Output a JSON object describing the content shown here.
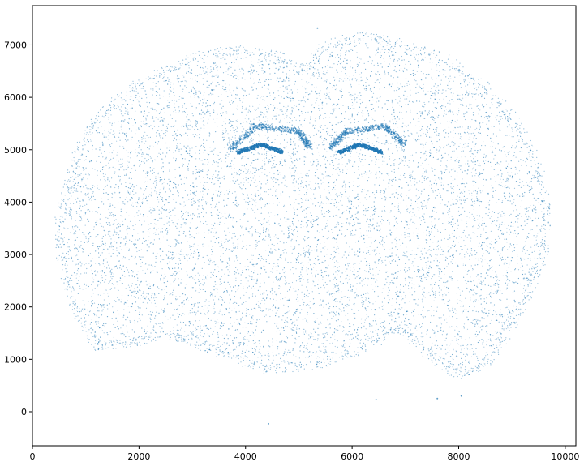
{
  "chart_data": {
    "type": "scatter",
    "title": "",
    "xlabel": "",
    "ylabel": "",
    "xlim": [
      0,
      10200
    ],
    "ylim": [
      -650,
      7750
    ],
    "x_ticks": [
      0,
      2000,
      4000,
      6000,
      8000,
      10000
    ],
    "x_tick_labels": [
      "0",
      "2000",
      "4000",
      "6000",
      "8000",
      "10000"
    ],
    "y_ticks": [
      0,
      1000,
      2000,
      3000,
      4000,
      5000,
      6000,
      7000
    ],
    "y_tick_labels": [
      "0",
      "1000",
      "2000",
      "3000",
      "4000",
      "5000",
      "6000",
      "7000"
    ],
    "grid": false,
    "legend": "none",
    "point_color": "#1f77b4",
    "series": [
      {
        "points_description_note": "dense point cloud forming a coronal brain section; sampled outline points below (data units)",
        "outline": [
          [
            500,
            3600
          ],
          [
            700,
            4500
          ],
          [
            1000,
            5300
          ],
          [
            1500,
            5900
          ],
          [
            2200,
            6400
          ],
          [
            3000,
            6750
          ],
          [
            3800,
            6900
          ],
          [
            4600,
            6800
          ],
          [
            5100,
            6500
          ],
          [
            5500,
            7000
          ],
          [
            6200,
            7200
          ],
          [
            7000,
            7000
          ],
          [
            7800,
            6700
          ],
          [
            8500,
            6200
          ],
          [
            9100,
            5500
          ],
          [
            9500,
            4700
          ],
          [
            9650,
            3800
          ],
          [
            9600,
            3000
          ],
          [
            9300,
            2200
          ],
          [
            8900,
            1500
          ],
          [
            8500,
            900
          ],
          [
            8000,
            700
          ],
          [
            7400,
            1100
          ],
          [
            6900,
            1600
          ],
          [
            6200,
            1200
          ],
          [
            5400,
            900
          ],
          [
            4400,
            800
          ],
          [
            3600,
            1100
          ],
          [
            3100,
            1300
          ],
          [
            2500,
            1500
          ],
          [
            1800,
            1300
          ],
          [
            1200,
            1250
          ],
          [
            800,
            1900
          ],
          [
            550,
            2800
          ]
        ],
        "hippocampus_bands": [
          [
            [
              3700,
              5000
            ],
            [
              4200,
              5450
            ],
            [
              5000,
              5350
            ],
            [
              5200,
              5050
            ]
          ],
          [
            [
              5600,
              5050
            ],
            [
              5900,
              5350
            ],
            [
              6600,
              5450
            ],
            [
              7000,
              5100
            ]
          ]
        ],
        "dense_lines": [
          [
            [
              3850,
              4950
            ],
            [
              4300,
              5100
            ],
            [
              4700,
              4950
            ]
          ],
          [
            [
              5750,
              4950
            ],
            [
              6150,
              5100
            ],
            [
              6550,
              4950
            ]
          ]
        ],
        "stray_points": [
          [
            4430,
            -230
          ],
          [
            5350,
            7320
          ],
          [
            6450,
            230
          ],
          [
            7600,
            250
          ],
          [
            8050,
            300
          ]
        ]
      }
    ]
  }
}
